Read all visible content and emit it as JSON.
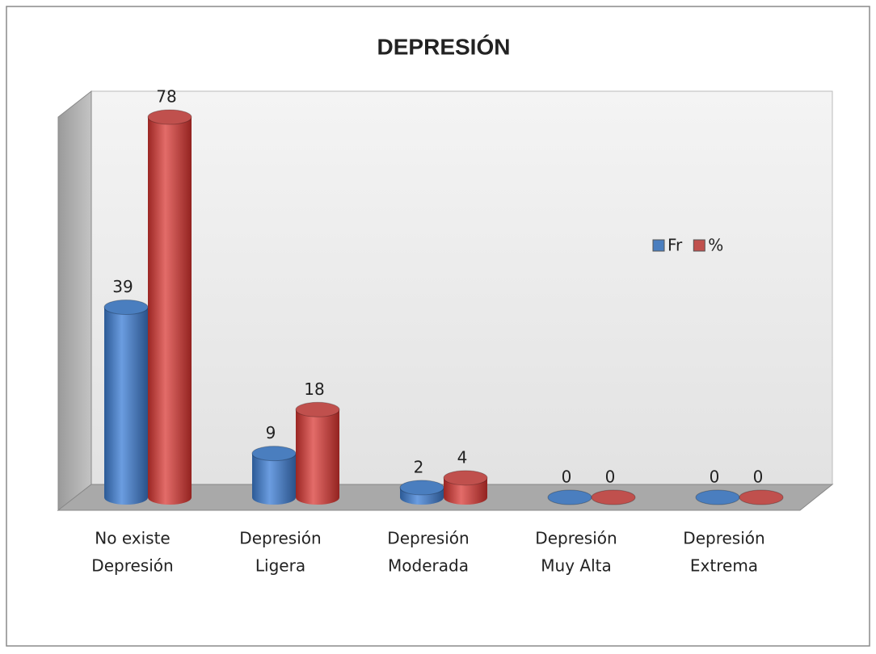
{
  "chart_data": {
    "type": "bar3d",
    "title": "DEPRESIÓN",
    "categories": [
      [
        "No existe",
        "Depresión"
      ],
      [
        "Depresión",
        "Ligera"
      ],
      [
        "Depresión",
        "Moderada"
      ],
      [
        "Depresión",
        "Muy Alta"
      ],
      [
        "Depresión",
        "Extrema"
      ]
    ],
    "series": [
      {
        "name": "Fr",
        "color": "#4a7ebf",
        "values": [
          39,
          9,
          2,
          0,
          0
        ]
      },
      {
        "name": "%",
        "color": "#c0504d",
        "values": [
          78,
          18,
          4,
          0,
          0
        ]
      }
    ],
    "legend": "right"
  }
}
